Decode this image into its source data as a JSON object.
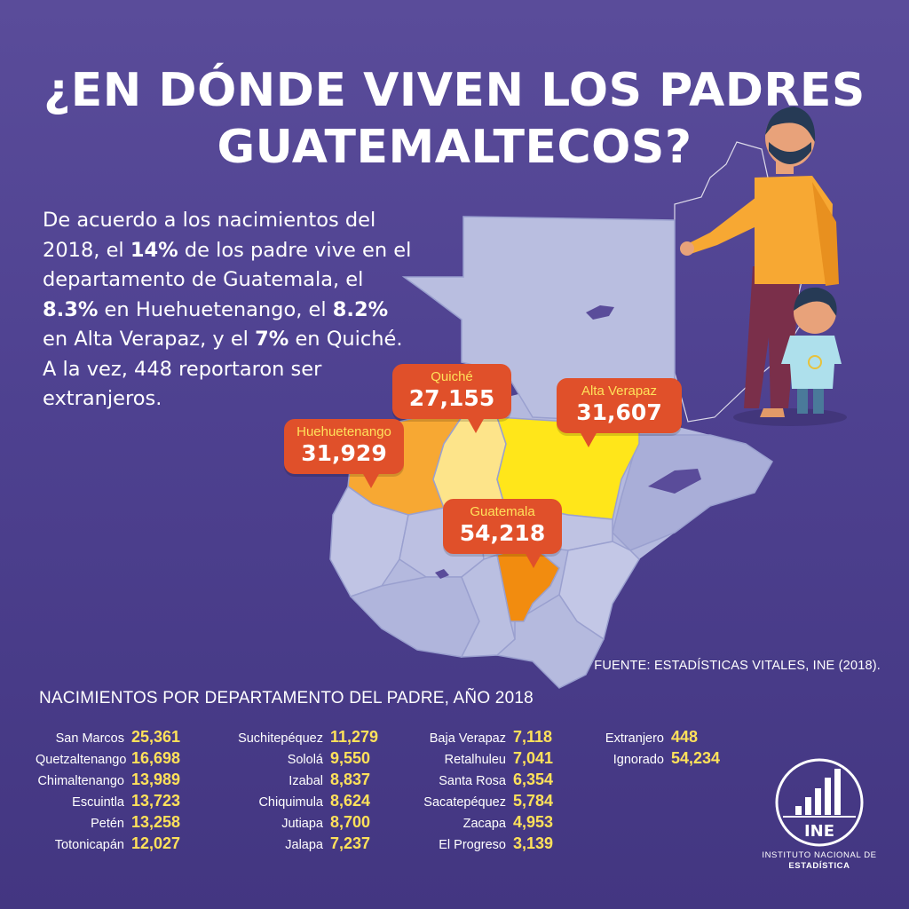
{
  "title": {
    "line1": "¿EN DÓNDE VIVEN LOS PADRES",
    "line2": "GUATEMALTECOS?"
  },
  "intro": {
    "t1": "De acuerdo a los nacimientos del 2018, el ",
    "b1": "14%",
    "t2": " de los padre vive en el departamento de Guatemala, el ",
    "b2": "8.3%",
    "t3": " en Huehuetenango, el ",
    "b3": "8.2%",
    "t4": " en Alta Verapaz, y el ",
    "b4": "7%",
    "t5": " en Quiché. A la vez, 448 reportaron ser extranjeros."
  },
  "callouts": [
    {
      "department": "Quiché",
      "value": "27,155"
    },
    {
      "department": "Alta Verapaz",
      "value": "31,607"
    },
    {
      "department": "Huehuetenango",
      "value": "31,929"
    },
    {
      "department": "Guatemala",
      "value": "54,218"
    }
  ],
  "source": "FUENTE: ESTADÍSTICAS VITALES,  INE (2018).",
  "table": {
    "title": "NACIMIENTOS POR DEPARTAMENTO DEL PADRE, AÑO 2018",
    "columns": [
      [
        {
          "name": "San Marcos",
          "value": "25,361"
        },
        {
          "name": "Quetzaltenango",
          "value": "16,698"
        },
        {
          "name": "Chimaltenango",
          "value": "13,989"
        },
        {
          "name": "Escuintla",
          "value": "13,723"
        },
        {
          "name": "Petén",
          "value": "13,258"
        },
        {
          "name": "Totonicapán",
          "value": "12,027"
        }
      ],
      [
        {
          "name": "Suchitepéquez",
          "value": "11,279"
        },
        {
          "name": "Sololá",
          "value": "9,550"
        },
        {
          "name": "Izabal",
          "value": "8,837"
        },
        {
          "name": "Chiquimula",
          "value": "8,624"
        },
        {
          "name": "Jutiapa",
          "value": "8,700"
        },
        {
          "name": "Jalapa",
          "value": "7,237"
        }
      ],
      [
        {
          "name": "Baja Verapaz",
          "value": "7,118"
        },
        {
          "name": "Retalhuleu",
          "value": "7,041"
        },
        {
          "name": "Santa Rosa",
          "value": "6,354"
        },
        {
          "name": "Sacatepéquez",
          "value": "5,784"
        },
        {
          "name": "Zacapa",
          "value": "4,953"
        },
        {
          "name": "El Progreso",
          "value": "3,139"
        }
      ],
      [
        {
          "name": "Extranjero",
          "value": "448"
        },
        {
          "name": "Ignorado",
          "value": "54,234"
        }
      ]
    ]
  },
  "logo": {
    "acronym": "INE",
    "caption_line1": "INSTITUTO NACIONAL DE",
    "caption_line2": "ESTADÍSTICA"
  },
  "colors": {
    "background": "#4e4190",
    "highlight_text": "#ffe15a",
    "callout": "#e0502a",
    "map_base": "#b4b9de",
    "guatemala": "#f28c0f",
    "huehuetenango": "#f7a833",
    "alta_verapaz": "#ffe61a",
    "quiche": "#fde48a"
  }
}
